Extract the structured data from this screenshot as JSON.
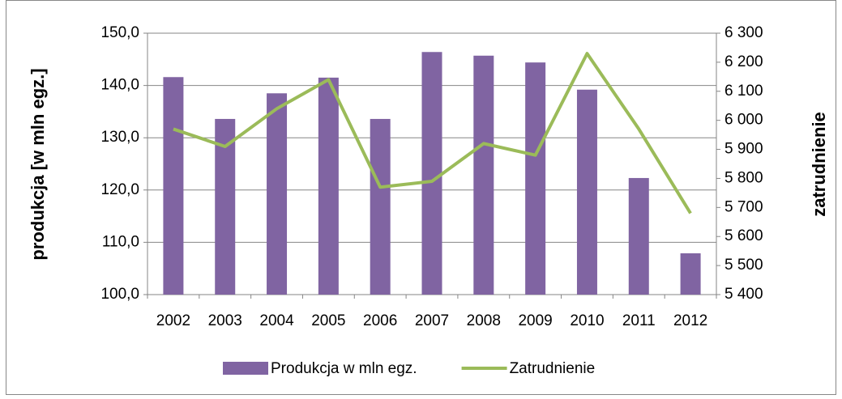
{
  "chart_data": {
    "type": "combo",
    "categories": [
      "2002",
      "2003",
      "2004",
      "2005",
      "2006",
      "2007",
      "2008",
      "2009",
      "2010",
      "2011",
      "2012"
    ],
    "series": [
      {
        "name": "Produkcja w mln egz.",
        "type": "bar",
        "color": "#8064a2",
        "values": [
          141.6,
          133.6,
          138.5,
          141.5,
          133.6,
          146.4,
          145.7,
          144.4,
          139.2,
          122.3,
          107.9
        ]
      },
      {
        "name": "Zatrudnienie",
        "type": "line",
        "axis": "y2",
        "color": "#9bbb59",
        "values": [
          5970,
          5910,
          6040,
          6140,
          5770,
          5790,
          5920,
          5880,
          6230,
          5970,
          5680
        ]
      }
    ],
    "ylabel": "produkcja [w mln egz.]",
    "y2label": "zatrudnienie",
    "ylim": [
      100,
      150
    ],
    "yticks": [
      {
        "value": 100,
        "label": "100,0"
      },
      {
        "value": 110,
        "label": "110,0"
      },
      {
        "value": 120,
        "label": "120,0"
      },
      {
        "value": 130,
        "label": "130,0"
      },
      {
        "value": 140,
        "label": "140,0"
      },
      {
        "value": 150,
        "label": "150,0"
      }
    ],
    "y2lim": [
      5400,
      6300
    ],
    "y2ticks": [
      {
        "value": 5400,
        "label": "5 400"
      },
      {
        "value": 5500,
        "label": "5 500"
      },
      {
        "value": 5600,
        "label": "5 600"
      },
      {
        "value": 5700,
        "label": "5 700"
      },
      {
        "value": 5800,
        "label": "5 800"
      },
      {
        "value": 5900,
        "label": "5 900"
      },
      {
        "value": 6000,
        "label": "6 000"
      },
      {
        "value": 6100,
        "label": "6 100"
      },
      {
        "value": 6200,
        "label": "6 200"
      },
      {
        "value": 6300,
        "label": "6 300"
      }
    ],
    "grid": true,
    "legend": "bottom"
  }
}
